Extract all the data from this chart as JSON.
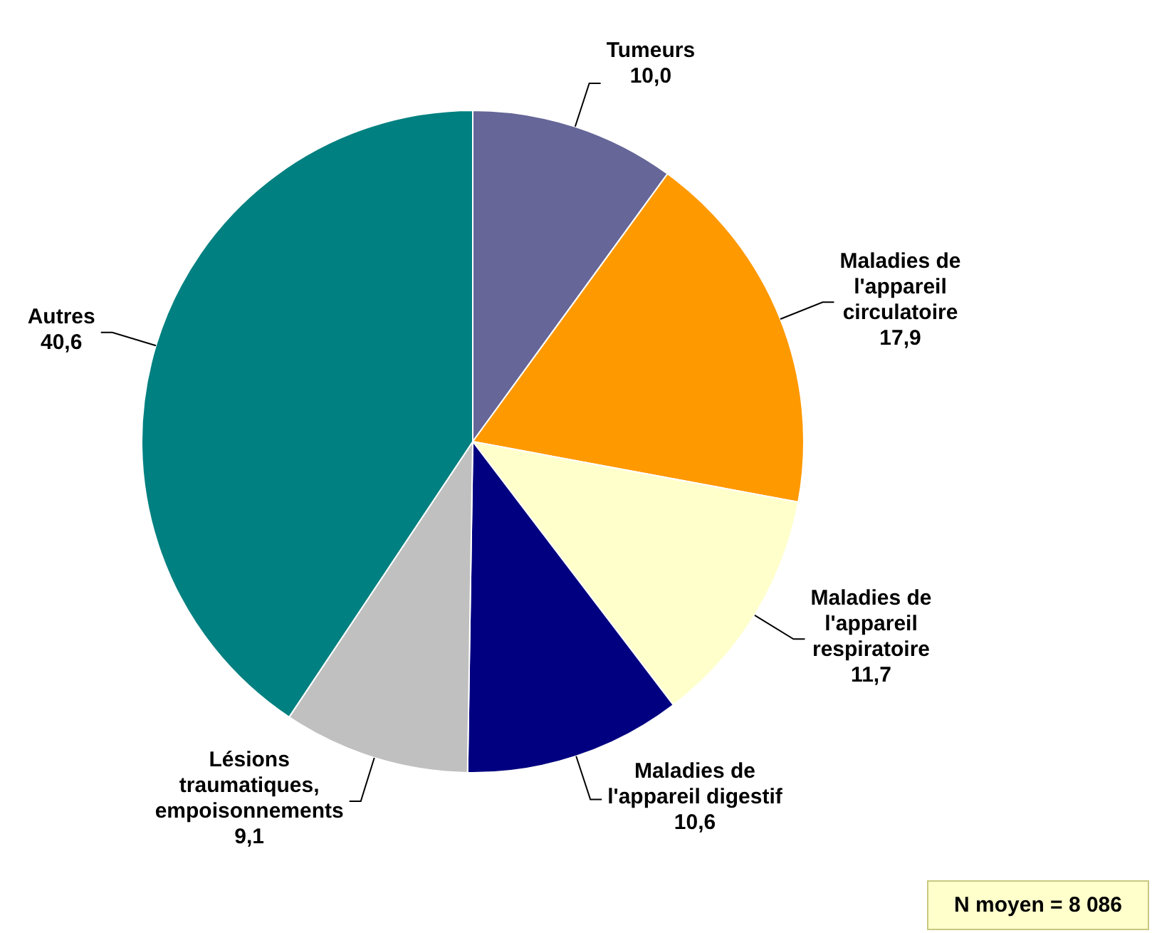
{
  "chart_data": {
    "type": "pie",
    "categories": [
      "Tumeurs",
      "Maladies de l'appareil circulatoire",
      "Maladies de l'appareil respiratoire",
      "Maladies de l'appareil digestif",
      "Lésions traumatiques, empoisonnements",
      "Autres"
    ],
    "values": [
      10.0,
      17.9,
      11.7,
      10.6,
      9.1,
      40.6
    ],
    "colors": [
      "#666699",
      "#ff9900",
      "#ffffcc",
      "#000080",
      "#c0c0c0",
      "#008080"
    ],
    "value_labels": [
      "10,0",
      "17,9",
      "11,7",
      "10,6",
      "9,1",
      "40,6"
    ],
    "legend": false,
    "annotations": [
      "N moyen = 8 086"
    ]
  }
}
